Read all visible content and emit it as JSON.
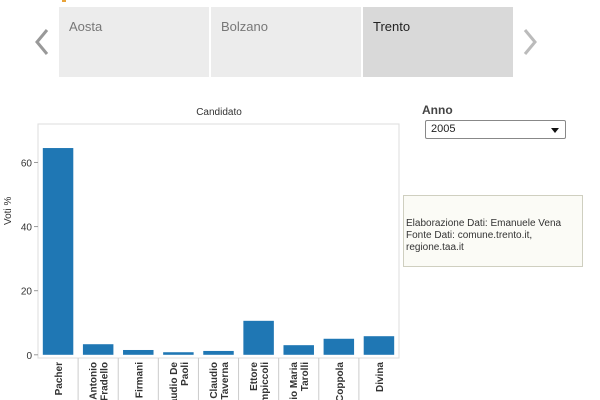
{
  "tabs": [
    {
      "label": "Aosta",
      "active": false
    },
    {
      "label": "Bolzano",
      "active": false
    },
    {
      "label": "Trento",
      "active": true
    }
  ],
  "icons": {
    "prev": "chevron-left-icon",
    "next": "chevron-right-icon"
  },
  "colors": {
    "bar": "#1f77b4",
    "tab": "#ececec",
    "tab_active": "#d9d9d9",
    "accent": "#e8a33a"
  },
  "filter": {
    "label": "Anno",
    "selected": "2005"
  },
  "info": {
    "line1": "Elaborazione Dati: Emanuele Vena",
    "line2": "Fonte Dati: comune.trento.it,",
    "line3": "regione.taa.it"
  },
  "chart_data": {
    "type": "bar",
    "title": "Candidato",
    "xlabel": "",
    "ylabel": "Voti %",
    "ylim": [
      -1,
      72
    ],
    "yticks": [
      0,
      20,
      40,
      60
    ],
    "grid": false,
    "categories": [
      "Pacher",
      "Antonio\nFradello",
      "Firmani",
      "Claudio De\nPaoli",
      "Claudio\nTaverna",
      "Ettore\nZampiccoli",
      "Pio Maria\nTarolli",
      "Coppola",
      "Divina"
    ],
    "values": [
      64.5,
      3.3,
      1.5,
      0.8,
      1.2,
      10.6,
      3.0,
      5.0,
      5.8
    ]
  }
}
